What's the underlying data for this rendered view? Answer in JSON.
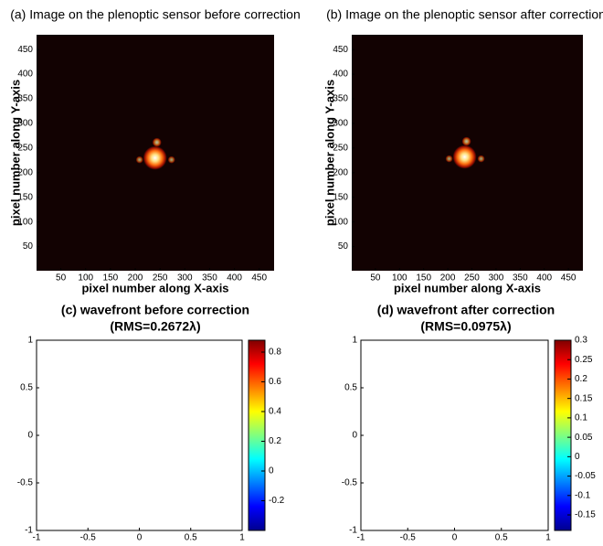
{
  "chart_data": [
    {
      "type": "image",
      "title": "(a) Image on the plenoptic sensor before correction",
      "xlabel": "pixel number along X-axis",
      "ylabel": "pixel number along Y-axis",
      "xlim": [
        1,
        480
      ],
      "ylim": [
        1,
        480
      ],
      "xticks": [
        50,
        100,
        150,
        200,
        250,
        300,
        350,
        400,
        450
      ],
      "yticks": [
        50,
        100,
        150,
        200,
        250,
        300,
        350,
        400,
        450
      ],
      "spot": {
        "x": 240,
        "y": 230
      },
      "background": "#120202"
    },
    {
      "type": "image",
      "title": "(b) Image on the plenoptic sensor after correction",
      "xlim": [
        1,
        480
      ],
      "ylim": [
        1,
        480
      ],
      "xlabel": "pixel number along X-axis",
      "ylabel": "pixel number along Y-axis",
      "xticks": [
        50,
        100,
        150,
        200,
        250,
        300,
        350,
        400,
        450
      ],
      "yticks": [
        50,
        100,
        150,
        200,
        250,
        300,
        350,
        400,
        450
      ],
      "spot": {
        "x": 235,
        "y": 232
      },
      "background": "#120202"
    },
    {
      "type": "wavefront",
      "title": "(c) wavefront before correction",
      "subtitle": "(RMS=0.2672λ)",
      "xlim": [
        -1,
        1
      ],
      "ylim": [
        -1,
        1
      ],
      "xticks": [
        -1,
        -0.5,
        0,
        0.5,
        1
      ],
      "yticks": [
        -1,
        -0.5,
        0,
        0.5,
        1
      ],
      "colormap": "jet",
      "clim": [
        -0.4,
        0.88
      ],
      "cticks": [
        -0.2,
        0,
        0.2,
        0.4,
        0.6,
        0.8
      ]
    },
    {
      "type": "wavefront",
      "title": "(d) wavefront after correction",
      "subtitle": "(RMS=0.0975λ)",
      "xlim": [
        -1,
        1
      ],
      "ylim": [
        -1,
        1
      ],
      "xticks": [
        -1,
        -0.5,
        0,
        0.5,
        1
      ],
      "yticks": [
        -1,
        -0.5,
        0,
        0.5,
        1
      ],
      "colormap": "jet",
      "clim": [
        -0.19,
        0.3
      ],
      "cticks": [
        -0.15,
        -0.1,
        -0.05,
        0,
        0.05,
        0.1,
        0.15,
        0.2,
        0.25,
        0.3
      ]
    }
  ]
}
